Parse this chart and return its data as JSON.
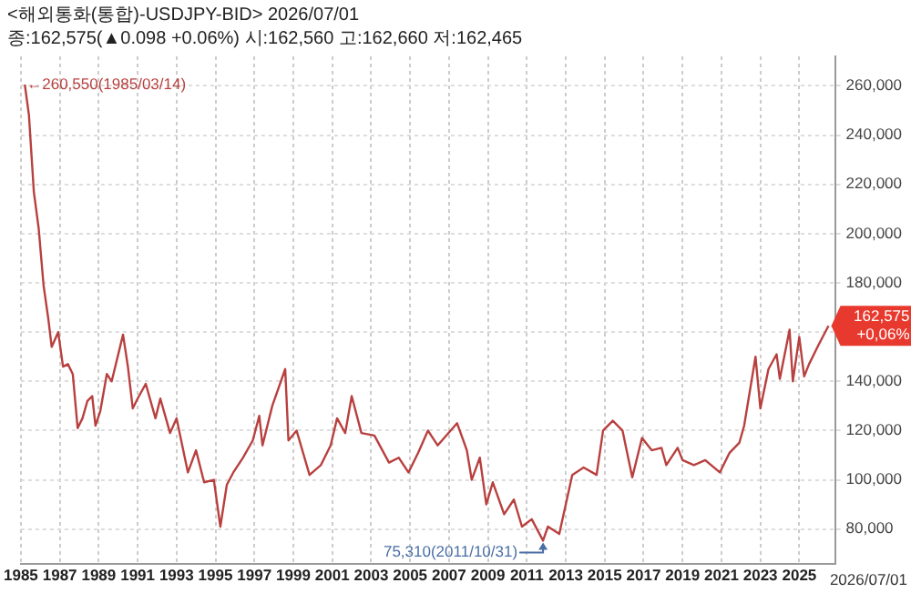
{
  "chart_data": {
    "type": "line",
    "title": "<해외통화(통합)-USDJPY-BID> 2026/07/01",
    "subtitle": "종:162,575(▲0.098 +0.06%) 시:162,560 고:162,660 저:162,465",
    "x": [
      "1985-03-14",
      "1985-06",
      "1985-09",
      "1985-12",
      "1986-03",
      "1986-06",
      "1986-08",
      "1986-12",
      "1987-03",
      "1987-06",
      "1987-09",
      "1987-12",
      "1988-03",
      "1988-06",
      "1988-09",
      "1988-11",
      "1989-02",
      "1989-06",
      "1989-09",
      "1990-04",
      "1990-07",
      "1990-10",
      "1991-01",
      "1991-06",
      "1991-12",
      "1992-03",
      "1992-06",
      "1992-09",
      "1993-01",
      "1993-08",
      "1994-01",
      "1994-06",
      "1994-12",
      "1995-04",
      "1995-08",
      "1995-12",
      "1996-06",
      "1996-12",
      "1997-04",
      "1997-06",
      "1997-12",
      "1998-08",
      "1998-10",
      "1999-03",
      "1999-11",
      "2000-06",
      "2000-12",
      "2001-04",
      "2001-09",
      "2002-01",
      "2002-07",
      "2003-03",
      "2003-12",
      "2004-06",
      "2004-12",
      "2005-06",
      "2005-12",
      "2006-06",
      "2007-06",
      "2007-12",
      "2008-03",
      "2008-08",
      "2008-12",
      "2009-04",
      "2009-11",
      "2010-05",
      "2010-10",
      "2011-04",
      "2011-10-31",
      "2012-02",
      "2012-09",
      "2013-05",
      "2013-12",
      "2014-08",
      "2014-12",
      "2015-06",
      "2015-12",
      "2016-06",
      "2016-12",
      "2017-06",
      "2017-12",
      "2018-03",
      "2018-10",
      "2019-01",
      "2019-08",
      "2020-03",
      "2020-12",
      "2021-06",
      "2021-12",
      "2022-03",
      "2022-10",
      "2023-01",
      "2023-06",
      "2023-11",
      "2024-01",
      "2024-07",
      "2024-09",
      "2025-01",
      "2025-04",
      "2025-07",
      "2026-01",
      "2026-07-01"
    ],
    "series": [
      {
        "color": "#b8403f",
        "values": [
          260550,
          248000,
          217000,
          202000,
          179000,
          165000,
          154000,
          160000,
          146000,
          147000,
          143000,
          121000,
          125000,
          132000,
          134000,
          122000,
          128000,
          143000,
          140000,
          159000,
          146000,
          129000,
          133000,
          139000,
          125000,
          133000,
          126000,
          119000,
          125000,
          103000,
          112000,
          99000,
          100000,
          81000,
          98000,
          103000,
          109000,
          116000,
          126000,
          114000,
          130000,
          145000,
          116000,
          120000,
          102000,
          106000,
          114000,
          125000,
          119000,
          134000,
          119000,
          118000,
          107000,
          109000,
          103000,
          111000,
          120000,
          114000,
          123000,
          112000,
          100000,
          109000,
          90000,
          99000,
          86000,
          92000,
          81000,
          84000,
          75310,
          81000,
          78000,
          102000,
          105000,
          102000,
          120000,
          124000,
          120000,
          101000,
          117000,
          112000,
          113000,
          106000,
          113000,
          108000,
          106000,
          108000,
          103000,
          111000,
          115000,
          122000,
          150000,
          129000,
          145000,
          151000,
          141000,
          161000,
          140000,
          158000,
          142000,
          147000,
          155000,
          162575
        ]
      }
    ],
    "xlim": [
      "1985-01",
      "2026-11"
    ],
    "xticks": [
      "1985",
      "1987",
      "1989",
      "1991",
      "1993",
      "1995",
      "1997",
      "1999",
      "2001",
      "2003",
      "2005",
      "2007",
      "2009",
      "2011",
      "2013",
      "2015",
      "2017",
      "2019",
      "2021",
      "2023",
      "2025"
    ],
    "ylim": [
      66000,
      272000
    ],
    "yticks": [
      {
        "value": 80000,
        "label": "80,000"
      },
      {
        "value": 100000,
        "label": "100,000"
      },
      {
        "value": 120000,
        "label": "120,000"
      },
      {
        "value": 140000,
        "label": "140,000"
      },
      {
        "value": 160000,
        "label": null
      },
      {
        "value": 180000,
        "label": "180,000"
      },
      {
        "value": 200000,
        "label": "200,000"
      },
      {
        "value": 220000,
        "label": "220,000"
      },
      {
        "value": 240000,
        "label": "240,000"
      },
      {
        "value": 260000,
        "label": "260,000"
      }
    ],
    "annotations": [
      {
        "text": "←260,550(1985/03/14)",
        "x": "1985-03-14",
        "y": 260550
      },
      {
        "text": "75,310(2011/10/31)",
        "x": "2011-10-31",
        "y": 75310
      },
      {
        "text": "162,575\n+0,06%",
        "x": "2026-07-01",
        "y": 162575
      },
      "2026/07/01"
    ],
    "grid": true,
    "legend": false,
    "marker": "none",
    "line_style": "solid"
  }
}
